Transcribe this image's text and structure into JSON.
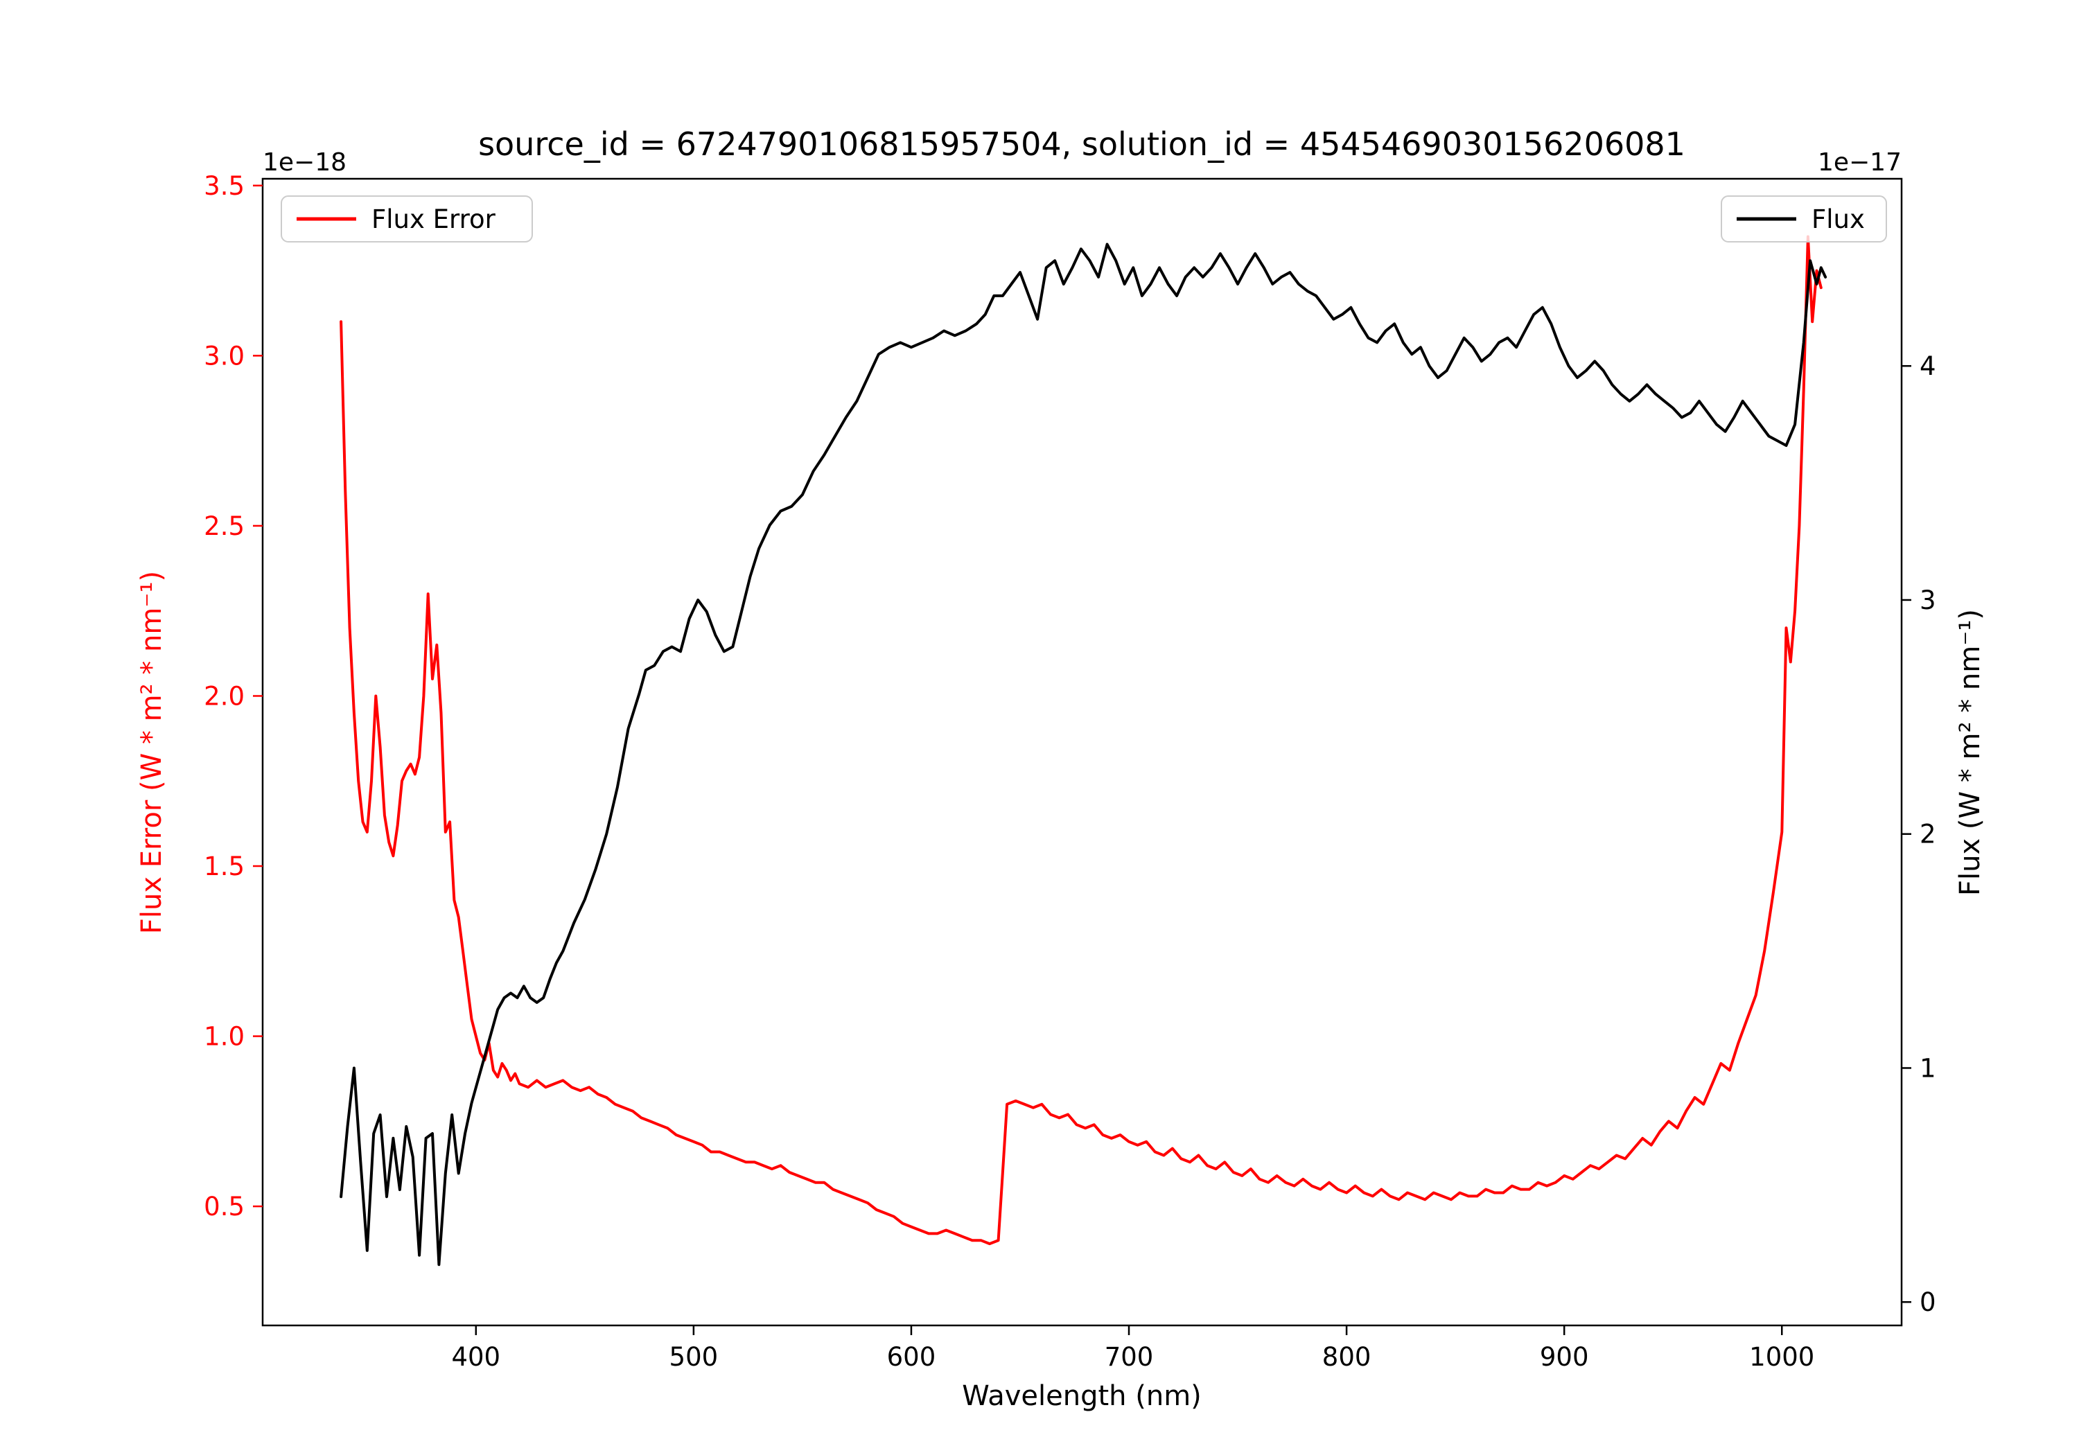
{
  "title": "source_id = 6724790106815957504, solution_id = 4545469030156206081",
  "chart_data": {
    "type": "line",
    "xlabel": "Wavelength (nm)",
    "xlim": [
      302,
      1055
    ],
    "grid": false,
    "x_ticks": [
      400,
      500,
      600,
      700,
      800,
      900,
      1000
    ],
    "x_tick_labels": [
      "400",
      "500",
      "600",
      "700",
      "800",
      "900",
      "1000"
    ],
    "left_axis": {
      "label": "Flux Error (W * m² * nm⁻¹)",
      "offset": "1e−18",
      "color": "#ff0000",
      "lim": [
        0.15,
        3.52
      ],
      "ticks": [
        0.5,
        1.0,
        1.5,
        2.0,
        2.5,
        3.0,
        3.5
      ],
      "tick_labels": [
        "0.5",
        "1.0",
        "1.5",
        "2.0",
        "2.5",
        "3.0",
        "3.5"
      ]
    },
    "right_axis": {
      "label": "Flux (W * m² * nm⁻¹)",
      "offset": "1e−17",
      "color": "#000000",
      "lim": [
        -0.1,
        4.8
      ],
      "ticks": [
        0,
        1,
        2,
        3,
        4
      ],
      "tick_labels": [
        "0",
        "1",
        "2",
        "3",
        "4"
      ]
    },
    "legend": [
      {
        "label": "Flux Error",
        "position": "upper left"
      },
      {
        "label": "Flux",
        "position": "upper right"
      }
    ],
    "series": [
      {
        "name": "Flux Error",
        "axis": "left",
        "color": "#ff0000",
        "units": "1e-18 W * m^2 * nm^-1",
        "x": [
          338,
          340,
          342,
          344,
          346,
          348,
          350,
          352,
          354,
          356,
          358,
          360,
          362,
          364,
          366,
          368,
          370,
          372,
          374,
          376,
          378,
          380,
          382,
          384,
          386,
          388,
          390,
          392,
          394,
          396,
          398,
          400,
          402,
          404,
          406,
          408,
          410,
          412,
          414,
          416,
          418,
          420,
          424,
          428,
          432,
          436,
          440,
          444,
          448,
          452,
          456,
          460,
          464,
          468,
          472,
          476,
          480,
          484,
          488,
          492,
          496,
          500,
          504,
          508,
          512,
          516,
          520,
          524,
          528,
          532,
          536,
          540,
          544,
          548,
          552,
          556,
          560,
          564,
          568,
          572,
          576,
          580,
          584,
          588,
          592,
          596,
          600,
          604,
          608,
          612,
          616,
          620,
          624,
          628,
          632,
          636,
          640,
          642,
          644,
          648,
          652,
          656,
          660,
          664,
          668,
          672,
          676,
          680,
          684,
          688,
          692,
          696,
          700,
          704,
          708,
          712,
          716,
          720,
          724,
          728,
          732,
          736,
          740,
          744,
          748,
          752,
          756,
          760,
          764,
          768,
          772,
          776,
          780,
          784,
          788,
          792,
          796,
          800,
          804,
          808,
          812,
          816,
          820,
          824,
          828,
          832,
          836,
          840,
          844,
          848,
          852,
          856,
          860,
          864,
          868,
          872,
          876,
          880,
          884,
          888,
          892,
          896,
          900,
          904,
          908,
          912,
          916,
          920,
          924,
          928,
          932,
          936,
          940,
          944,
          948,
          952,
          956,
          960,
          964,
          968,
          972,
          976,
          980,
          984,
          988,
          992,
          996,
          1000,
          1002,
          1004,
          1006,
          1008,
          1010,
          1012,
          1014,
          1016,
          1018
        ],
        "y": [
          3.1,
          2.6,
          2.2,
          1.95,
          1.75,
          1.63,
          1.6,
          1.75,
          2.0,
          1.85,
          1.65,
          1.57,
          1.53,
          1.62,
          1.75,
          1.78,
          1.8,
          1.77,
          1.82,
          2.0,
          2.3,
          2.05,
          2.15,
          1.95,
          1.6,
          1.63,
          1.4,
          1.35,
          1.25,
          1.15,
          1.05,
          1.0,
          0.95,
          0.93,
          0.98,
          0.9,
          0.88,
          0.92,
          0.9,
          0.87,
          0.89,
          0.86,
          0.85,
          0.87,
          0.85,
          0.86,
          0.87,
          0.85,
          0.84,
          0.85,
          0.83,
          0.82,
          0.8,
          0.79,
          0.78,
          0.76,
          0.75,
          0.74,
          0.73,
          0.71,
          0.7,
          0.69,
          0.68,
          0.66,
          0.66,
          0.65,
          0.64,
          0.63,
          0.63,
          0.62,
          0.61,
          0.62,
          0.6,
          0.59,
          0.58,
          0.57,
          0.57,
          0.55,
          0.54,
          0.53,
          0.52,
          0.51,
          0.49,
          0.48,
          0.47,
          0.45,
          0.44,
          0.43,
          0.42,
          0.42,
          0.43,
          0.42,
          0.41,
          0.4,
          0.4,
          0.39,
          0.4,
          0.6,
          0.8,
          0.81,
          0.8,
          0.79,
          0.8,
          0.77,
          0.76,
          0.77,
          0.74,
          0.73,
          0.74,
          0.71,
          0.7,
          0.71,
          0.69,
          0.68,
          0.69,
          0.66,
          0.65,
          0.67,
          0.64,
          0.63,
          0.65,
          0.62,
          0.61,
          0.63,
          0.6,
          0.59,
          0.61,
          0.58,
          0.57,
          0.59,
          0.57,
          0.56,
          0.58,
          0.56,
          0.55,
          0.57,
          0.55,
          0.54,
          0.56,
          0.54,
          0.53,
          0.55,
          0.53,
          0.52,
          0.54,
          0.53,
          0.52,
          0.54,
          0.53,
          0.52,
          0.54,
          0.53,
          0.53,
          0.55,
          0.54,
          0.54,
          0.56,
          0.55,
          0.55,
          0.57,
          0.56,
          0.57,
          0.59,
          0.58,
          0.6,
          0.62,
          0.61,
          0.63,
          0.65,
          0.64,
          0.67,
          0.7,
          0.68,
          0.72,
          0.75,
          0.73,
          0.78,
          0.82,
          0.8,
          0.86,
          0.92,
          0.9,
          0.98,
          1.05,
          1.12,
          1.25,
          1.42,
          1.6,
          2.2,
          2.1,
          2.25,
          2.5,
          2.9,
          3.35,
          3.1,
          3.25,
          3.2
        ]
      },
      {
        "name": "Flux",
        "axis": "right",
        "color": "#000000",
        "units": "1e-17 W * m^2 * nm^-1",
        "x": [
          338,
          341,
          344,
          347,
          350,
          353,
          356,
          359,
          362,
          365,
          368,
          371,
          374,
          377,
          380,
          383,
          386,
          389,
          392,
          395,
          398,
          401,
          404,
          407,
          410,
          413,
          416,
          419,
          422,
          425,
          428,
          431,
          434,
          437,
          440,
          445,
          450,
          455,
          460,
          465,
          470,
          475,
          478,
          482,
          486,
          490,
          494,
          498,
          502,
          506,
          510,
          514,
          518,
          522,
          526,
          530,
          535,
          540,
          545,
          550,
          555,
          560,
          565,
          570,
          575,
          580,
          585,
          590,
          595,
          600,
          605,
          610,
          615,
          620,
          625,
          630,
          634,
          638,
          642,
          646,
          650,
          654,
          658,
          662,
          666,
          670,
          674,
          678,
          682,
          686,
          690,
          694,
          698,
          702,
          706,
          710,
          714,
          718,
          722,
          726,
          730,
          734,
          738,
          742,
          746,
          750,
          754,
          758,
          762,
          766,
          770,
          774,
          778,
          782,
          786,
          790,
          794,
          798,
          802,
          806,
          810,
          814,
          818,
          822,
          826,
          830,
          834,
          838,
          842,
          846,
          850,
          854,
          858,
          862,
          866,
          870,
          874,
          878,
          882,
          886,
          890,
          894,
          898,
          902,
          906,
          910,
          914,
          918,
          922,
          926,
          930,
          934,
          938,
          942,
          946,
          950,
          954,
          958,
          962,
          966,
          970,
          974,
          978,
          982,
          986,
          990,
          994,
          998,
          1002,
          1006,
          1010,
          1013,
          1016,
          1018,
          1020
        ],
        "y": [
          0.45,
          0.75,
          1.0,
          0.6,
          0.22,
          0.72,
          0.8,
          0.45,
          0.7,
          0.48,
          0.75,
          0.62,
          0.2,
          0.7,
          0.72,
          0.16,
          0.55,
          0.8,
          0.55,
          0.72,
          0.85,
          0.95,
          1.05,
          1.15,
          1.25,
          1.3,
          1.32,
          1.3,
          1.35,
          1.3,
          1.28,
          1.3,
          1.38,
          1.45,
          1.5,
          1.62,
          1.72,
          1.85,
          2.0,
          2.2,
          2.45,
          2.6,
          2.7,
          2.72,
          2.78,
          2.8,
          2.78,
          2.92,
          3.0,
          2.95,
          2.85,
          2.78,
          2.8,
          2.95,
          3.1,
          3.22,
          3.32,
          3.38,
          3.4,
          3.45,
          3.55,
          3.62,
          3.7,
          3.78,
          3.85,
          3.95,
          4.05,
          4.08,
          4.1,
          4.08,
          4.1,
          4.12,
          4.15,
          4.13,
          4.15,
          4.18,
          4.22,
          4.3,
          4.3,
          4.35,
          4.4,
          4.3,
          4.2,
          4.42,
          4.45,
          4.35,
          4.42,
          4.5,
          4.45,
          4.38,
          4.52,
          4.45,
          4.35,
          4.42,
          4.3,
          4.35,
          4.42,
          4.35,
          4.3,
          4.38,
          4.42,
          4.38,
          4.42,
          4.48,
          4.42,
          4.35,
          4.42,
          4.48,
          4.42,
          4.35,
          4.38,
          4.4,
          4.35,
          4.32,
          4.3,
          4.25,
          4.2,
          4.22,
          4.25,
          4.18,
          4.12,
          4.1,
          4.15,
          4.18,
          4.1,
          4.05,
          4.08,
          4.0,
          3.95,
          3.98,
          4.05,
          4.12,
          4.08,
          4.02,
          4.05,
          4.1,
          4.12,
          4.08,
          4.15,
          4.22,
          4.25,
          4.18,
          4.08,
          4.0,
          3.95,
          3.98,
          4.02,
          3.98,
          3.92,
          3.88,
          3.85,
          3.88,
          3.92,
          3.88,
          3.85,
          3.82,
          3.78,
          3.8,
          3.85,
          3.8,
          3.75,
          3.72,
          3.78,
          3.85,
          3.8,
          3.75,
          3.7,
          3.68,
          3.66,
          3.75,
          4.1,
          4.45,
          4.35,
          4.42,
          4.38
        ]
      }
    ]
  }
}
